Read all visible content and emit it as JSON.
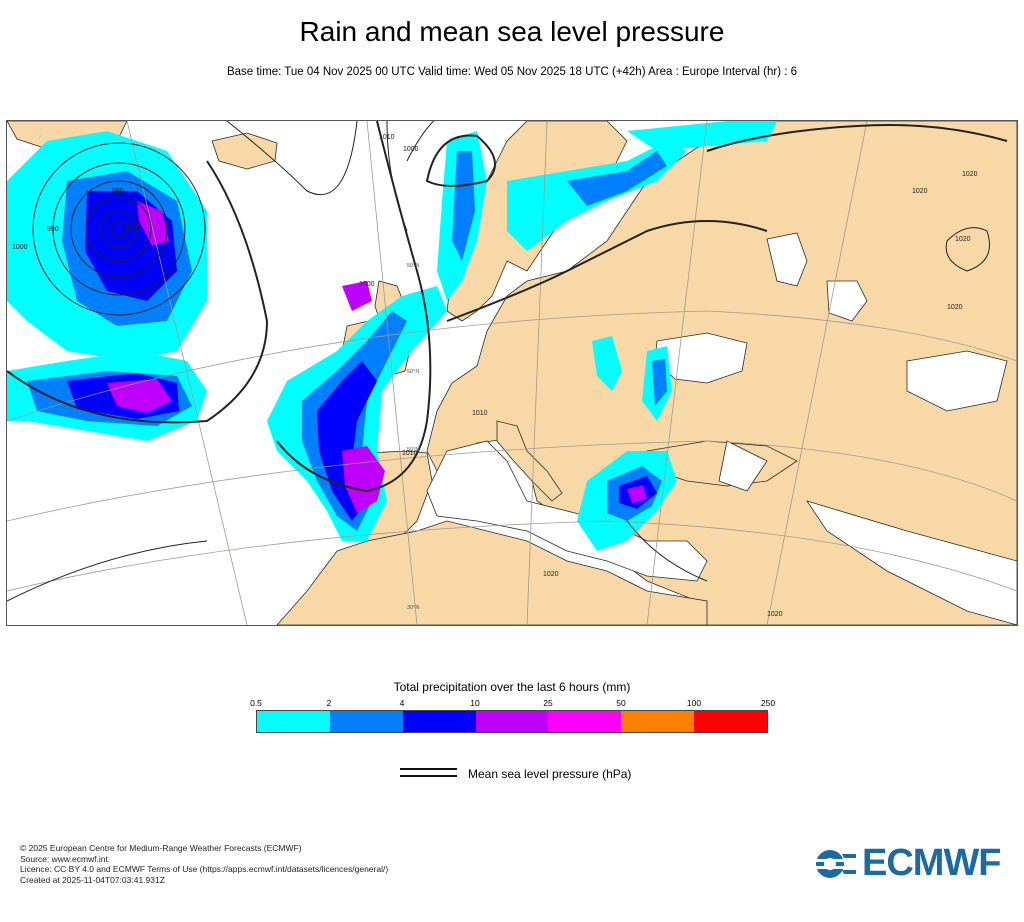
{
  "header": {
    "title": "Rain and mean sea level pressure",
    "subtitle": "Base time: Tue 04 Nov 2025 00 UTC Valid time: Wed 05 Nov 2025 18 UTC (+42h) Area : Europe Interval (hr) : 6"
  },
  "map": {
    "isobar_labels": [
      "1010",
      "1000",
      "1000",
      "980",
      "970",
      "990",
      "1000",
      "1010",
      "1010",
      "1020",
      "1020",
      "1020",
      "1020",
      "1020",
      "1020"
    ],
    "graticule_labels": [
      "50°N",
      "50°N",
      "50°N",
      "30°N"
    ],
    "colors": {
      "land": "#f8d8a6",
      "sea": "#ffffff",
      "coast": "#2b2b2b",
      "border": "#8a8a8a",
      "graticule": "#a09a90",
      "isobar": "#222222"
    }
  },
  "legend": {
    "title": "Total precipitation over the last 6 hours (mm)",
    "ticks": [
      "0.5",
      "2",
      "4",
      "10",
      "25",
      "50",
      "100",
      "250"
    ],
    "colors": [
      "#00ffff",
      "#0080ff",
      "#0000ff",
      "#c000ff",
      "#ff00ff",
      "#ff8000",
      "#ff0000"
    ],
    "msl_label": "Mean sea level pressure (hPa)"
  },
  "footer": {
    "line1": "© 2025 European Centre for Medium-Range Weather Forecasts (ECMWF)",
    "line2": "Source: www.ecmwf.int",
    "line3": "Licence: CC BY 4.0 and ECMWF Terms of Use (https://apps.ecmwf.int/datasets/licences/general/)",
    "line4": "Created at 2025-11-04T07:03:41.931Z"
  },
  "logo": {
    "text": "ECMWF",
    "color": "#1b6aa3"
  }
}
